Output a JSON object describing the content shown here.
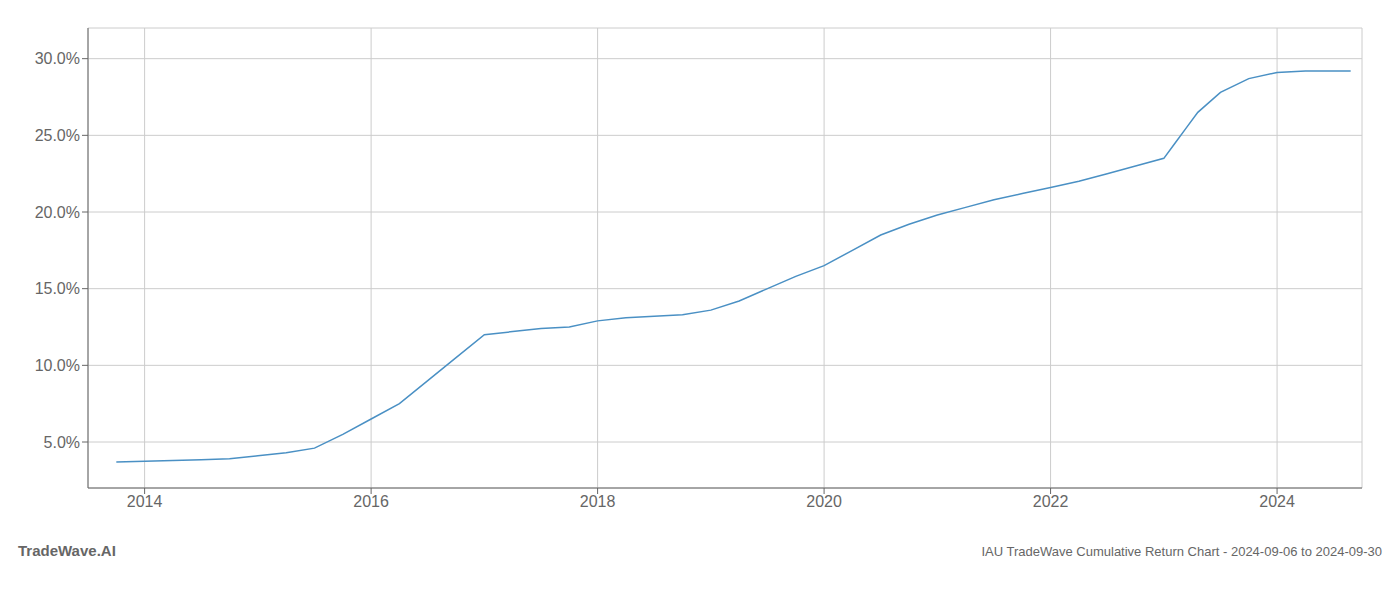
{
  "chart_data": {
    "type": "line",
    "title": "IAU TradeWave Cumulative Return Chart - 2024-09-06 to 2024-09-30",
    "annotations": [
      "TradeWave.AI"
    ],
    "color": "#4a90c4",
    "grid": true,
    "x": [
      2013.75,
      2014.0,
      2014.25,
      2014.5,
      2014.75,
      2015.0,
      2015.25,
      2015.5,
      2015.75,
      2016.0,
      2016.25,
      2016.5,
      2016.75,
      2017.0,
      2017.25,
      2017.5,
      2017.75,
      2018.0,
      2018.25,
      2018.5,
      2018.75,
      2019.0,
      2019.25,
      2019.5,
      2019.75,
      2020.0,
      2020.25,
      2020.5,
      2020.75,
      2021.0,
      2021.25,
      2021.5,
      2021.75,
      2022.0,
      2022.25,
      2022.5,
      2022.75,
      2023.0,
      2023.1,
      2023.2,
      2023.3,
      2023.5,
      2023.75,
      2024.0,
      2024.25,
      2024.5,
      2024.65
    ],
    "values": [
      3.7,
      3.75,
      3.8,
      3.85,
      3.9,
      4.1,
      4.3,
      4.6,
      5.5,
      6.5,
      7.5,
      9.0,
      10.5,
      12.0,
      12.2,
      12.4,
      12.5,
      12.9,
      13.1,
      13.2,
      13.3,
      13.6,
      14.2,
      15.0,
      15.8,
      16.5,
      17.5,
      18.5,
      19.2,
      19.8,
      20.3,
      20.8,
      21.2,
      21.6,
      22.0,
      22.5,
      23.0,
      23.5,
      24.5,
      25.5,
      26.5,
      27.8,
      28.7,
      29.1,
      29.2,
      29.2,
      29.2
    ],
    "xlim": [
      2013.5,
      2024.75
    ],
    "ylim": [
      2.0,
      32.0
    ],
    "xticks": [
      2014,
      2016,
      2018,
      2020,
      2022,
      2024
    ],
    "yticks": [
      {
        "value": 5.0,
        "label": "5.0%"
      },
      {
        "value": 10.0,
        "label": "10.0%"
      },
      {
        "value": 15.0,
        "label": "15.0%"
      },
      {
        "value": 20.0,
        "label": "20.0%"
      },
      {
        "value": 25.0,
        "label": "25.0%"
      },
      {
        "value": 30.0,
        "label": "30.0%"
      }
    ]
  }
}
